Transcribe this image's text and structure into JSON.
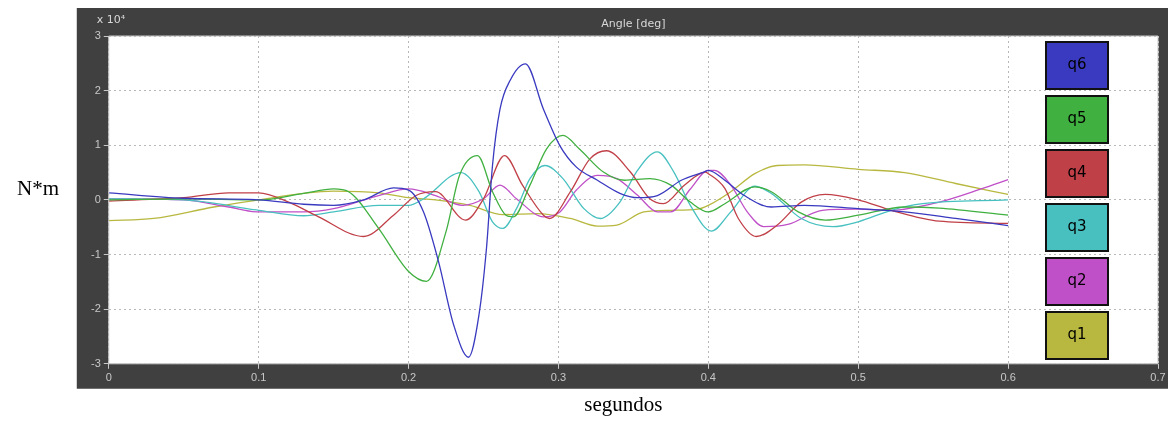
{
  "chart_data": {
    "type": "line",
    "title": "Angle [deg]",
    "xlabel": "segundos",
    "ylabel": "N*m",
    "annotations": [
      "x 10⁴"
    ],
    "xlim": [
      0,
      0.7
    ],
    "xticks": [
      0,
      0.1,
      0.2,
      0.3,
      0.4,
      0.5,
      0.6,
      0.7
    ],
    "ylim": [
      -3,
      3
    ],
    "yticks": [
      -3,
      -2,
      -1,
      0,
      1,
      2,
      3
    ],
    "grid": true,
    "legend": "right",
    "marker": "none",
    "line_style": "solid",
    "series": [
      {
        "name": "q6",
        "color": "#3a3ac0",
        "x": [
          0,
          0.05,
          0.1,
          0.13,
          0.15,
          0.17,
          0.19,
          0.2,
          0.21,
          0.22,
          0.23,
          0.24,
          0.247,
          0.252,
          0.256,
          0.261,
          0.268,
          0.278,
          0.29,
          0.301,
          0.312,
          0.326,
          0.341,
          0.353,
          0.366,
          0.382,
          0.397,
          0.4,
          0.411,
          0.424,
          0.442,
          0.464,
          0.5,
          0.531,
          0.565,
          0.6
        ],
        "values": [
          0.13,
          0.03,
          0,
          -0.08,
          -0.1,
          0,
          0.22,
          0.18,
          -0.22,
          -1.13,
          -2.28,
          -2.88,
          -2.1,
          -0.88,
          0.63,
          1.66,
          2.2,
          2.49,
          1.66,
          0.99,
          0.6,
          0.36,
          0.12,
          0.04,
          0.08,
          0.36,
          0.51,
          0.54,
          0.36,
          0.08,
          -0.13,
          -0.1,
          -0.16,
          -0.22,
          -0.34,
          -0.47
        ]
      },
      {
        "name": "q5",
        "color": "#40b040",
        "x": [
          0,
          0.05,
          0.1,
          0.13,
          0.15,
          0.16,
          0.18,
          0.2,
          0.212,
          0.225,
          0.234,
          0.246,
          0.256,
          0.265,
          0.27,
          0.281,
          0.292,
          0.303,
          0.314,
          0.33,
          0.344,
          0.361,
          0.375,
          0.388,
          0.4,
          0.411,
          0.431,
          0.442,
          0.46,
          0.478,
          0.5,
          0.531,
          0.554,
          0.6
        ],
        "values": [
          0,
          0.02,
          0,
          0.12,
          0.2,
          0.15,
          -0.52,
          -1.31,
          -1.49,
          -0.58,
          0.45,
          0.81,
          0.15,
          -0.28,
          -0.31,
          0.27,
          0.93,
          1.18,
          0.93,
          0.51,
          0.36,
          0.39,
          0.27,
          -0.04,
          -0.22,
          -0.07,
          0.24,
          0.15,
          -0.22,
          -0.37,
          -0.28,
          -0.13,
          -0.15,
          -0.28
        ]
      },
      {
        "name": "q4",
        "color": "#c04048",
        "x": [
          0,
          0.05,
          0.08,
          0.1,
          0.12,
          0.14,
          0.17,
          0.19,
          0.205,
          0.218,
          0.238,
          0.25,
          0.264,
          0.276,
          0.29,
          0.294,
          0.308,
          0.321,
          0.332,
          0.348,
          0.361,
          0.37,
          0.384,
          0.398,
          0.4,
          0.411,
          0.42,
          0.432,
          0.446,
          0.462,
          0.478,
          0.5,
          0.522,
          0.554,
          0.6
        ],
        "values": [
          -0.02,
          0.04,
          0.13,
          0.13,
          -0.04,
          -0.31,
          -0.67,
          -0.28,
          0.08,
          0.15,
          -0.37,
          0.02,
          0.81,
          0.27,
          -0.28,
          -0.34,
          0.15,
          0.75,
          0.9,
          0.51,
          0.02,
          -0.07,
          0.27,
          0.51,
          0.48,
          0.21,
          -0.34,
          -0.67,
          -0.46,
          -0.04,
          0.1,
          0,
          -0.19,
          -0.39,
          -0.43
        ]
      },
      {
        "name": "q3",
        "color": "#48c0c0",
        "x": [
          0,
          0.05,
          0.1,
          0.13,
          0.15,
          0.18,
          0.2,
          0.21,
          0.235,
          0.247,
          0.256,
          0.263,
          0.272,
          0.281,
          0.291,
          0.303,
          0.317,
          0.328,
          0.341,
          0.352,
          0.366,
          0.377,
          0.388,
          0.402,
          0.415,
          0.431,
          0.442,
          0.462,
          0.483,
          0.5,
          0.522,
          0.543,
          0.6
        ],
        "values": [
          0.02,
          0,
          -0.19,
          -0.29,
          -0.22,
          -0.1,
          -0.1,
          0.02,
          0.5,
          0.15,
          -0.4,
          -0.52,
          -0.16,
          0.39,
          0.63,
          0.39,
          -0.16,
          -0.34,
          -0.04,
          0.51,
          0.88,
          0.51,
          -0.1,
          -0.57,
          -0.22,
          0.25,
          0.12,
          -0.34,
          -0.49,
          -0.4,
          -0.19,
          -0.07,
          0
        ]
      },
      {
        "name": "q2",
        "color": "#c050c8",
        "x": [
          0,
          0.05,
          0.08,
          0.1,
          0.13,
          0.15,
          0.18,
          0.2,
          0.218,
          0.236,
          0.25,
          0.261,
          0.272,
          0.29,
          0.301,
          0.312,
          0.326,
          0.339,
          0.353,
          0.366,
          0.375,
          0.388,
          0.4,
          0.404,
          0.415,
          0.426,
          0.437,
          0.453,
          0.476,
          0.5,
          0.522,
          0.554,
          0.583,
          0.6
        ],
        "values": [
          0.02,
          0,
          -0.13,
          -0.22,
          -0.22,
          -0.16,
          0.08,
          0.2,
          0.08,
          -0.1,
          0.02,
          0.27,
          0.02,
          -0.31,
          -0.22,
          0.18,
          0.45,
          0.39,
          0.08,
          -0.22,
          -0.22,
          0.2,
          0.54,
          0.54,
          0.27,
          -0.22,
          -0.49,
          -0.45,
          -0.19,
          -0.17,
          -0.19,
          -0.04,
          0.21,
          0.37
        ]
      },
      {
        "name": "q1",
        "color": "#b8b840",
        "x": [
          0,
          0.03,
          0.07,
          0.1,
          0.13,
          0.15,
          0.18,
          0.2,
          0.218,
          0.241,
          0.263,
          0.286,
          0.308,
          0.326,
          0.339,
          0.357,
          0.375,
          0.393,
          0.4,
          0.415,
          0.431,
          0.446,
          0.464,
          0.5,
          0.531,
          0.565,
          0.6
        ],
        "values": [
          -0.38,
          -0.34,
          -0.13,
          0,
          0.12,
          0.16,
          0.13,
          0.04,
          0,
          -0.1,
          -0.27,
          -0.25,
          -0.34,
          -0.48,
          -0.46,
          -0.22,
          -0.19,
          -0.17,
          -0.1,
          0.15,
          0.48,
          0.63,
          0.64,
          0.56,
          0.5,
          0.3,
          0.1
        ]
      }
    ]
  }
}
